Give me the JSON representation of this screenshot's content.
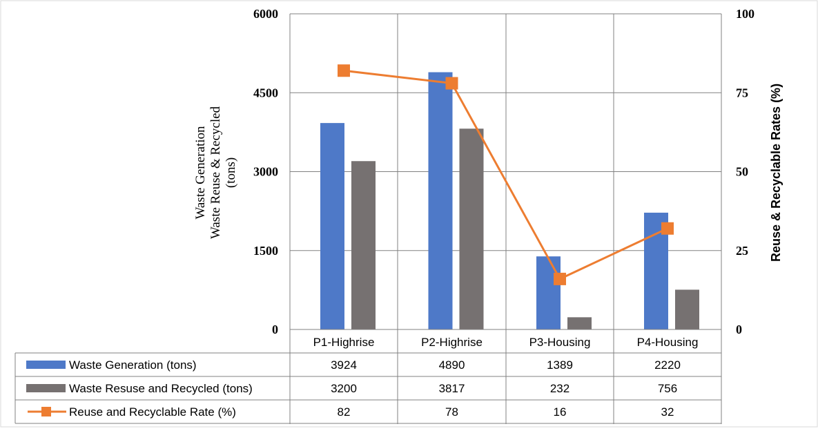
{
  "chart_data": {
    "type": "bar",
    "categories": [
      "P1-Highrise",
      "P2-Highrise",
      "P3-Housing",
      "P4-Housing"
    ],
    "series": [
      {
        "name": "Waste Generation (tons)",
        "type": "bar",
        "axis": "left",
        "color": "#4e79c8",
        "values": [
          3924,
          4890,
          1389,
          2220
        ]
      },
      {
        "name": "Waste Resuse and Recycled (tons)",
        "type": "bar",
        "axis": "left",
        "color": "#767171",
        "values": [
          3200,
          3817,
          232,
          756
        ]
      },
      {
        "name": "Reuse and Recyclable Rate (%)",
        "type": "line",
        "axis": "right",
        "color": "#ed7d31",
        "values": [
          82,
          78,
          16,
          32
        ]
      }
    ],
    "ylabel_lines": [
      "Waste Generation",
      "Waste Reuse & Recycled",
      "(tons)"
    ],
    "y2label": "Reuse & Recyclable Rates (%)",
    "ylim": [
      0,
      6000
    ],
    "y2lim": [
      0,
      100
    ],
    "yticks": [
      "0",
      "1500",
      "3000",
      "4500",
      "6000"
    ],
    "y2ticks": [
      "0",
      "25",
      "50",
      "75",
      "100"
    ],
    "grid": true,
    "legend": "data-table-below"
  }
}
